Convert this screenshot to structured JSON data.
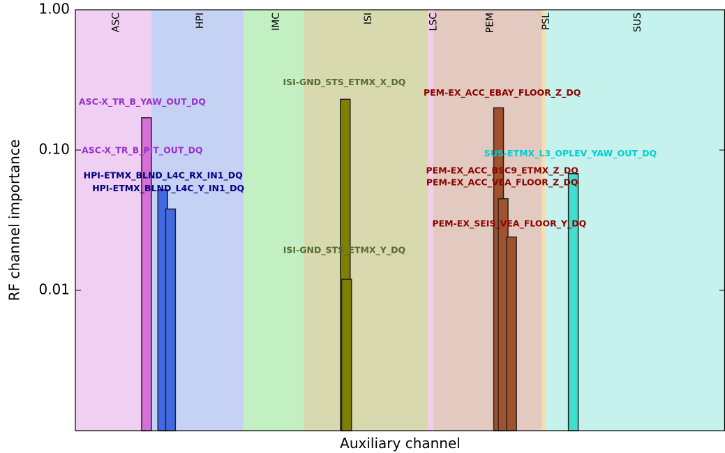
{
  "chart_data": {
    "type": "bar",
    "title": "",
    "xlabel": "Auxiliary channel",
    "ylabel": "RF channel importance",
    "yscale": "log",
    "ylim": [
      0.001,
      1.0
    ],
    "yticks": [
      {
        "value": 0.01,
        "label": "0.01"
      },
      {
        "value": 0.1,
        "label": "0.10"
      },
      {
        "value": 1.0,
        "label": "1.00"
      }
    ],
    "xlim": [
      0,
      100
    ],
    "grid": false,
    "legend": "none",
    "subsystems": [
      {
        "name": "ASC",
        "x_start": 0.0,
        "x_end": 11.7,
        "color": "#f0d0f2"
      },
      {
        "name": "HPI",
        "x_start": 11.7,
        "x_end": 25.9,
        "color": "#c6d2f4"
      },
      {
        "name": "IMC",
        "x_start": 25.9,
        "x_end": 35.1,
        "color": "#c3f0c3"
      },
      {
        "name": "ISI",
        "x_start": 35.1,
        "x_end": 54.3,
        "color": "#d9d9b0"
      },
      {
        "name": "LSC",
        "x_start": 54.3,
        "x_end": 55.1,
        "color": "#f4cdea"
      },
      {
        "name": "PEM",
        "x_start": 55.1,
        "x_end": 71.8,
        "color": "#e3cac0"
      },
      {
        "name": "PSL",
        "x_start": 71.8,
        "x_end": 72.3,
        "color": "#f7dcae"
      },
      {
        "name": "SUS",
        "x_start": 72.3,
        "x_end": 100.0,
        "color": "#c5f2ec"
      }
    ],
    "bars": [
      {
        "x": 10.3,
        "width": 0.5,
        "value": 0.08,
        "color": "#d670d6"
      },
      {
        "x": 10.2,
        "width": 1.5,
        "value": 0.17,
        "color": "#d670d6"
      },
      {
        "x": 13.0,
        "width": 0.4,
        "value": 0.008,
        "color": "#4169e1"
      },
      {
        "x": 13.5,
        "width": 0.4,
        "value": 0.01,
        "color": "#4169e1"
      },
      {
        "x": 12.7,
        "width": 1.5,
        "value": 0.052,
        "color": "#4169e1"
      },
      {
        "x": 13.9,
        "width": 1.5,
        "value": 0.038,
        "color": "#4169e1"
      },
      {
        "x": 40.8,
        "width": 1.5,
        "value": 0.23,
        "color": "#808000"
      },
      {
        "x": 41.0,
        "width": 1.5,
        "value": 0.012,
        "color": "#808000"
      },
      {
        "x": 64.5,
        "width": 0.4,
        "value": 0.008,
        "color": "#a0522d"
      },
      {
        "x": 64.4,
        "width": 1.5,
        "value": 0.2,
        "color": "#a0522d"
      },
      {
        "x": 65.1,
        "width": 1.5,
        "value": 0.045,
        "color": "#a0522d"
      },
      {
        "x": 66.4,
        "width": 1.5,
        "value": 0.024,
        "color": "#a0522d"
      },
      {
        "x": 75.9,
        "width": 1.5,
        "value": 0.068,
        "color": "#40e0d0"
      }
    ],
    "annotations": [
      {
        "text": "ASC-X_TR_B_YAW_OUT_DQ",
        "x": 10.3,
        "y": 0.21,
        "color": "#9932cc"
      },
      {
        "text": "ASC-X_TR_B_PIT_OUT_DQ",
        "x": 10.3,
        "y": 0.095,
        "color": "#9932cc"
      },
      {
        "text": "HPI-ETMX_BLND_L4C_RX_IN1_DQ",
        "x": 13.5,
        "y": 0.063,
        "color": "#000080"
      },
      {
        "text": "HPI-ETMX_BLND_L4C_Y_IN1_DQ",
        "x": 14.3,
        "y": 0.051,
        "color": "#000080"
      },
      {
        "text": "ISI-GND_STS_ETMX_X_DQ",
        "x": 41.4,
        "y": 0.29,
        "color": "#556b2f"
      },
      {
        "text": "ISI-GND_STS_ETMX_Y_DQ",
        "x": 41.4,
        "y": 0.0185,
        "color": "#556b2f"
      },
      {
        "text": "PEM-EX_ACC_EBAY_FLOOR_Z_DQ",
        "x": 65.7,
        "y": 0.245,
        "color": "#8b0000"
      },
      {
        "text": "PEM-EX_ACC_BSC9_ETMX_Z_DQ",
        "x": 65.7,
        "y": 0.068,
        "color": "#8b0000"
      },
      {
        "text": "PEM-EX_ACC_VEA_FLOOR_Z_DQ",
        "x": 65.7,
        "y": 0.056,
        "color": "#8b0000"
      },
      {
        "text": "PEM-EX_SEIS_VEA_FLOOR_Y_DQ",
        "x": 66.8,
        "y": 0.0285,
        "color": "#8b0000"
      },
      {
        "text": "SUS-ETMX_L3_OPLEV_YAW_OUT_DQ",
        "x": 76.2,
        "y": 0.09,
        "color": "#00ced1"
      }
    ]
  }
}
